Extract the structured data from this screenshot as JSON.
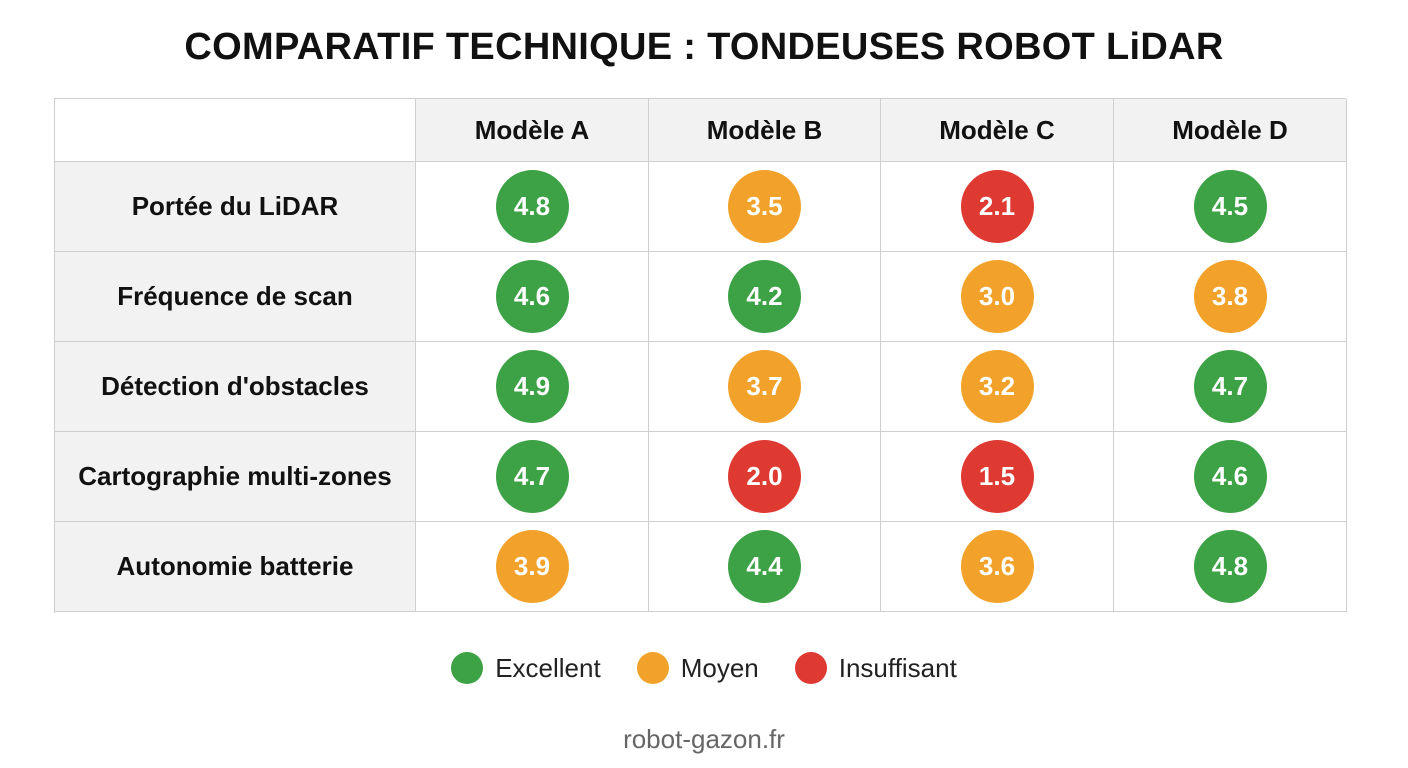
{
  "title": "COMPARATIF TECHNIQUE : TONDEUSES ROBOT LiDAR",
  "colors": {
    "Excellent": "#3da246",
    "Moyen": "#f2a22a",
    "Insuffisant": "#de3a32"
  },
  "chart_data": {
    "type": "table",
    "title": "COMPARATIF TECHNIQUE : TONDEUSES ROBOT LiDAR",
    "columns": [
      "Modèle A",
      "Modèle B",
      "Modèle C",
      "Modèle D"
    ],
    "rows": [
      {
        "label": "Portée du LiDAR",
        "values": [
          "4.8",
          "3.5",
          "2.1",
          "4.5"
        ],
        "ratings": [
          "Excellent",
          "Moyen",
          "Insuffisant",
          "Excellent"
        ]
      },
      {
        "label": "Fréquence de scan",
        "values": [
          "4.6",
          "4.2",
          "3.0",
          "3.8"
        ],
        "ratings": [
          "Excellent",
          "Excellent",
          "Moyen",
          "Moyen"
        ]
      },
      {
        "label": "Détection d'obstacles",
        "values": [
          "4.9",
          "3.7",
          "3.2",
          "4.7"
        ],
        "ratings": [
          "Excellent",
          "Moyen",
          "Moyen",
          "Excellent"
        ]
      },
      {
        "label": "Cartographie multi-zones",
        "values": [
          "4.7",
          "2.0",
          "1.5",
          "4.6"
        ],
        "ratings": [
          "Excellent",
          "Insuffisant",
          "Insuffisant",
          "Excellent"
        ]
      },
      {
        "label": "Autonomie batterie",
        "values": [
          "3.9",
          "4.4",
          "3.6",
          "4.8"
        ],
        "ratings": [
          "Moyen",
          "Excellent",
          "Moyen",
          "Excellent"
        ]
      }
    ],
    "legend": [
      "Excellent",
      "Moyen",
      "Insuffisant"
    ],
    "legend_position": "bottom-center"
  },
  "footer": "robot-gazon.fr"
}
